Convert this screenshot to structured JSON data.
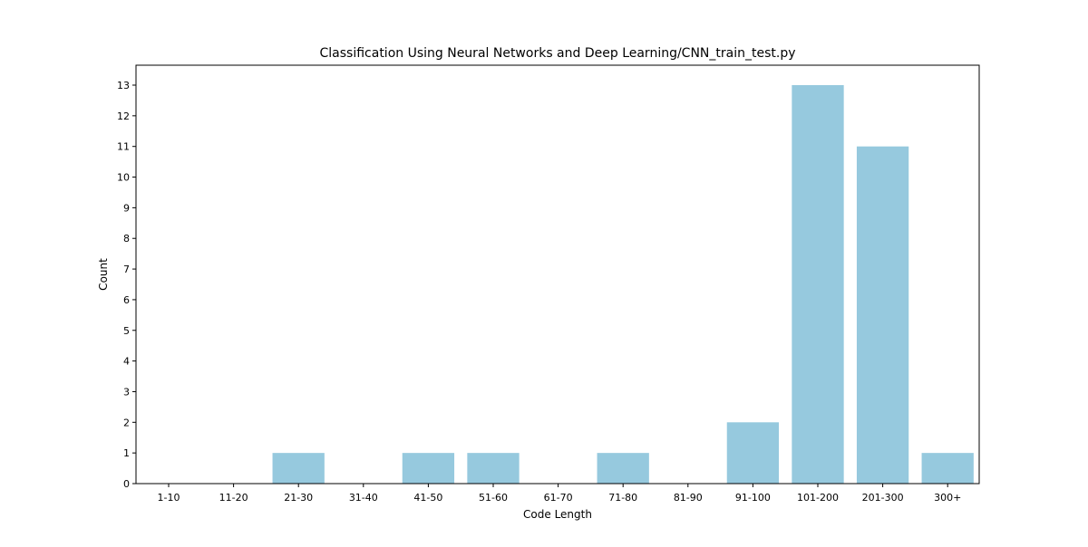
{
  "chart_data": {
    "type": "bar",
    "title": "Classification Using Neural Networks and Deep Learning/CNN_train_test.py",
    "xlabel": "Code Length",
    "ylabel": "Count",
    "categories": [
      "1-10",
      "11-20",
      "21-30",
      "31-40",
      "41-50",
      "51-60",
      "61-70",
      "71-80",
      "81-90",
      "91-100",
      "101-200",
      "201-300",
      "300+"
    ],
    "values": [
      0,
      0,
      1,
      0,
      1,
      1,
      0,
      1,
      0,
      2,
      13,
      11,
      1
    ],
    "ylim": [
      0,
      13.65
    ],
    "yticks": [
      "0",
      "1",
      "2",
      "3",
      "4",
      "5",
      "6",
      "7",
      "8",
      "9",
      "10",
      "11",
      "12",
      "13"
    ],
    "bar_color": "#96c9de",
    "grid": false,
    "legend": "none"
  }
}
